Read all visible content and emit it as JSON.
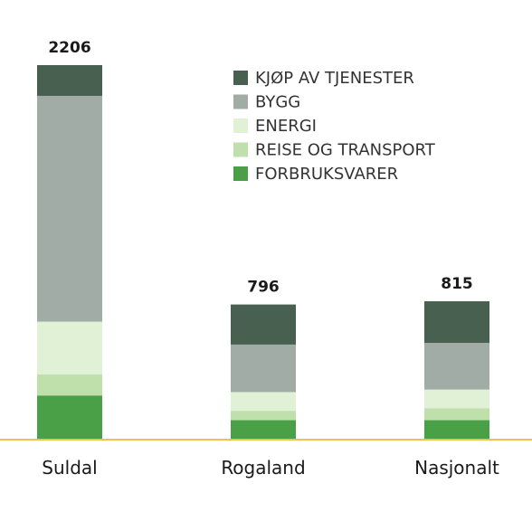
{
  "chart_data": {
    "type": "bar",
    "stacked": true,
    "categories": [
      "Suldal",
      "Rogaland",
      "Nasjonalt"
    ],
    "totals": [
      2206,
      796,
      815
    ],
    "series": [
      {
        "name": "FORBRUKSVARER",
        "color": "#4aa046",
        "values": [
          260,
          115,
          115
        ]
      },
      {
        "name": "REISE OG TRANSPORT",
        "color": "#bfe0aa",
        "values": [
          125,
          55,
          70
        ]
      },
      {
        "name": "ENERGI",
        "color": "#e1f1d6",
        "values": [
          310,
          110,
          110
        ]
      },
      {
        "name": "BYGG",
        "color": "#a2aca6",
        "values": [
          1330,
          280,
          275
        ]
      },
      {
        "name": "KJØP AV TJENESTER",
        "color": "#48604f",
        "values": [
          181,
          236,
          245
        ]
      }
    ],
    "legend_order": [
      "KJØP AV TJENESTER",
      "BYGG",
      "ENERGI",
      "REISE OG TRANSPORT",
      "FORBRUKSVARER"
    ],
    "legend_position": "top-right",
    "axis_color": "#f0c050",
    "ylim": [
      0,
      2206
    ],
    "grid": false
  }
}
